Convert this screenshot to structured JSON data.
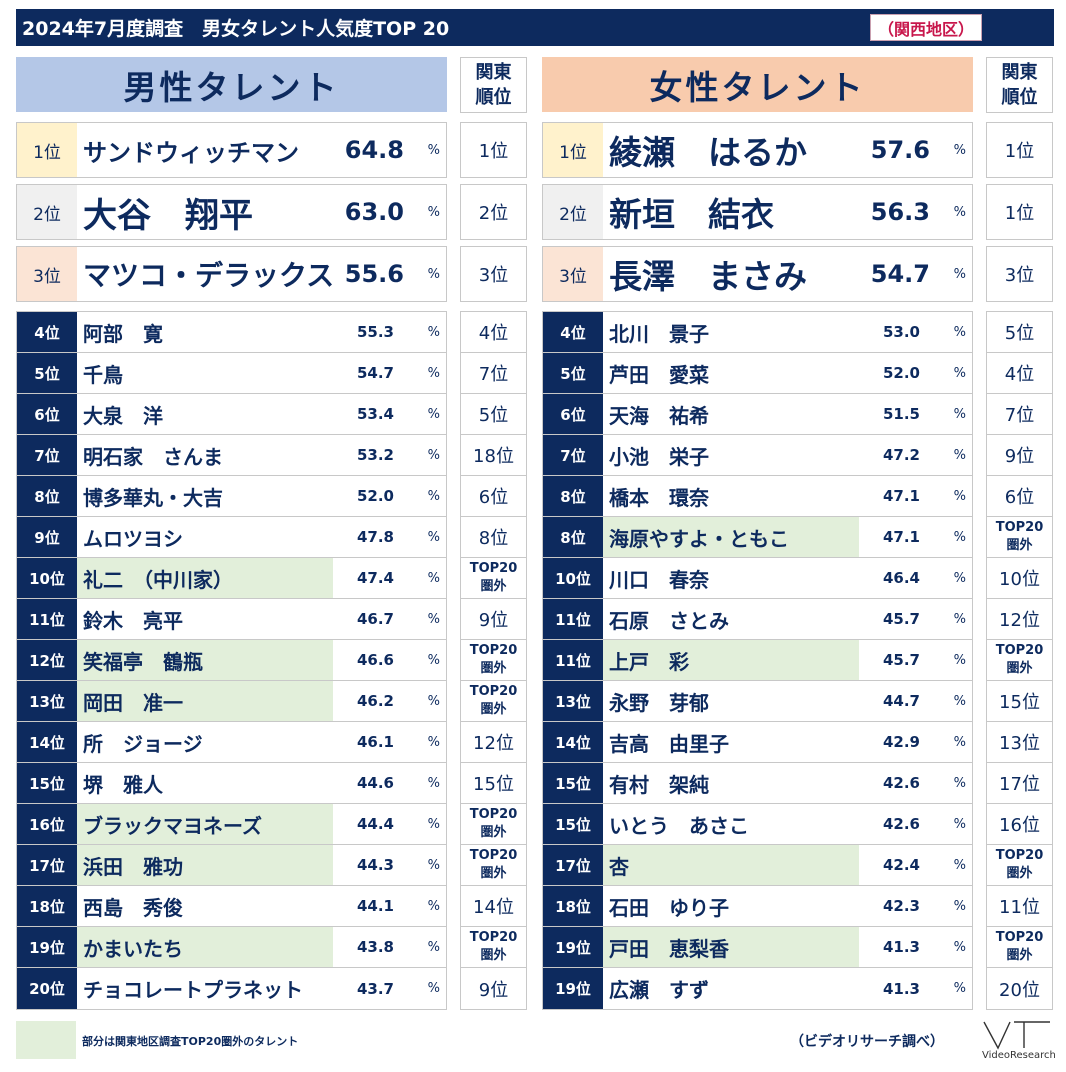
{
  "title": "2024年7月度調査　男女タレント人気度TOP 20",
  "region": "（関西地区）",
  "percent_sign": "%",
  "kanto_header": [
    "関東",
    "順位"
  ],
  "out_label": [
    "TOP20",
    "圏外"
  ],
  "male": {
    "header": "男性タレント",
    "top3": [
      {
        "rank": "1位",
        "name": "サンドウィッチマン",
        "value": "64.8",
        "kanto": "1位"
      },
      {
        "rank": "2位",
        "name": "大谷　翔平",
        "value": "63.0",
        "kanto": "2位"
      },
      {
        "rank": "3位",
        "name": "マツコ・デラックス",
        "value": "55.6",
        "kanto": "3位"
      }
    ],
    "rows": [
      {
        "rank": "4位",
        "name": "阿部　寛",
        "value": "55.3",
        "kanto": "4位",
        "highlight": false
      },
      {
        "rank": "5位",
        "name": "千鳥",
        "value": "54.7",
        "kanto": "7位",
        "highlight": false
      },
      {
        "rank": "6位",
        "name": "大泉　洋",
        "value": "53.4",
        "kanto": "5位",
        "highlight": false
      },
      {
        "rank": "7位",
        "name": "明石家　さんま",
        "value": "53.2",
        "kanto": "18位",
        "highlight": false
      },
      {
        "rank": "8位",
        "name": "博多華丸・大吉",
        "value": "52.0",
        "kanto": "6位",
        "highlight": false
      },
      {
        "rank": "9位",
        "name": "ムロツヨシ",
        "value": "47.8",
        "kanto": "8位",
        "highlight": false
      },
      {
        "rank": "10位",
        "name": "礼二　（中川家）",
        "value": "47.4",
        "kanto": "",
        "highlight": true
      },
      {
        "rank": "11位",
        "name": "鈴木　亮平",
        "value": "46.7",
        "kanto": "9位",
        "highlight": false
      },
      {
        "rank": "12位",
        "name": "笑福亭　鶴瓶",
        "value": "46.6",
        "kanto": "",
        "highlight": true
      },
      {
        "rank": "13位",
        "name": "岡田　准一",
        "value": "46.2",
        "kanto": "",
        "highlight": true
      },
      {
        "rank": "14位",
        "name": "所　ジョージ",
        "value": "46.1",
        "kanto": "12位",
        "highlight": false
      },
      {
        "rank": "15位",
        "name": "堺　雅人",
        "value": "44.6",
        "kanto": "15位",
        "highlight": false
      },
      {
        "rank": "16位",
        "name": "ブラックマヨネーズ",
        "value": "44.4",
        "kanto": "",
        "highlight": true
      },
      {
        "rank": "17位",
        "name": "浜田　雅功",
        "value": "44.3",
        "kanto": "",
        "highlight": true
      },
      {
        "rank": "18位",
        "name": "西島　秀俊",
        "value": "44.1",
        "kanto": "14位",
        "highlight": false
      },
      {
        "rank": "19位",
        "name": "かまいたち",
        "value": "43.8",
        "kanto": "",
        "highlight": true
      },
      {
        "rank": "20位",
        "name": "チョコレートプラネット",
        "value": "43.7",
        "kanto": "9位",
        "highlight": false
      }
    ]
  },
  "female": {
    "header": "女性タレント",
    "top3": [
      {
        "rank": "1位",
        "name": "綾瀬　はるか",
        "value": "57.6",
        "kanto": "1位"
      },
      {
        "rank": "2位",
        "name": "新垣　結衣",
        "value": "56.3",
        "kanto": "1位"
      },
      {
        "rank": "3位",
        "name": "長澤　まさみ",
        "value": "54.7",
        "kanto": "3位"
      }
    ],
    "rows": [
      {
        "rank": "4位",
        "name": "北川　景子",
        "value": "53.0",
        "kanto": "5位",
        "highlight": false
      },
      {
        "rank": "5位",
        "name": "芦田　愛菜",
        "value": "52.0",
        "kanto": "4位",
        "highlight": false
      },
      {
        "rank": "6位",
        "name": "天海　祐希",
        "value": "51.5",
        "kanto": "7位",
        "highlight": false
      },
      {
        "rank": "7位",
        "name": "小池　栄子",
        "value": "47.2",
        "kanto": "9位",
        "highlight": false
      },
      {
        "rank": "8位",
        "name": "橋本　環奈",
        "value": "47.1",
        "kanto": "6位",
        "highlight": false
      },
      {
        "rank": "8位",
        "name": "海原やすよ・ともこ",
        "value": "47.1",
        "kanto": "",
        "highlight": true
      },
      {
        "rank": "10位",
        "name": "川口　春奈",
        "value": "46.4",
        "kanto": "10位",
        "highlight": false
      },
      {
        "rank": "11位",
        "name": "石原　さとみ",
        "value": "45.7",
        "kanto": "12位",
        "highlight": false
      },
      {
        "rank": "11位",
        "name": "上戸　彩",
        "value": "45.7",
        "kanto": "",
        "highlight": true
      },
      {
        "rank": "13位",
        "name": "永野　芽郁",
        "value": "44.7",
        "kanto": "15位",
        "highlight": false
      },
      {
        "rank": "14位",
        "name": "吉高　由里子",
        "value": "42.9",
        "kanto": "13位",
        "highlight": false
      },
      {
        "rank": "15位",
        "name": "有村　架純",
        "value": "42.6",
        "kanto": "17位",
        "highlight": false
      },
      {
        "rank": "15位",
        "name": "いとう　あさこ",
        "value": "42.6",
        "kanto": "16位",
        "highlight": false
      },
      {
        "rank": "17位",
        "name": "杏",
        "value": "42.4",
        "kanto": "",
        "highlight": true
      },
      {
        "rank": "18位",
        "name": "石田　ゆり子",
        "value": "42.3",
        "kanto": "11位",
        "highlight": false
      },
      {
        "rank": "19位",
        "name": "戸田　恵梨香",
        "value": "41.3",
        "kanto": "",
        "highlight": true
      },
      {
        "rank": "19位",
        "name": "広瀬　すず",
        "value": "41.3",
        "kanto": "20位",
        "highlight": false
      }
    ]
  },
  "legend": "部分は関東地区調査TOP20圏外のタレント",
  "source": "（ビデオリサーチ調べ）",
  "logo_text": "VideoResearch"
}
